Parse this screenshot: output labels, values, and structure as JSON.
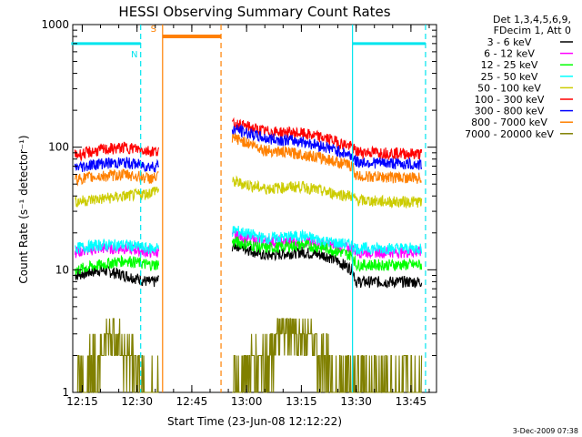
{
  "chart_data": {
    "type": "line",
    "title": "HESSI Observing Summary Count Rates",
    "xlabel": "Start Time (23-Jun-08 12:12:22)",
    "ylabel": "Count Rate (s⁻¹ detector⁻¹)",
    "y_scale": "log",
    "ylim": [
      1,
      1000
    ],
    "xlim_minutes_after_midnight": [
      732.4,
      832
    ],
    "x_ticks": [
      "12:15",
      "12:30",
      "12:45",
      "13:00",
      "13:15",
      "13:30",
      "13:45"
    ],
    "y_ticks": [
      "1",
      "10",
      "100",
      "1000"
    ],
    "legend_header": [
      "Det 1,3,4,5,6,9,",
      "FDecim 1, Att 0"
    ],
    "legend_position": "top-right",
    "footer": "3-Dec-2009 07:38",
    "markers": [
      {
        "label": "N",
        "color": "#00e5ee",
        "start": "12:12",
        "end": "12:31",
        "level": 700,
        "end_dash": "12:31"
      },
      {
        "label": "S",
        "color": "#ff8000",
        "start": "12:37",
        "end": "12:53",
        "level": 800,
        "start_solid": "12:37",
        "end_dash": "12:53"
      },
      {
        "label": "",
        "color": "#00e5ee",
        "start": "13:29",
        "end": "13:49",
        "level": 700,
        "start_solid": "13:29",
        "end_dash": "13:49"
      }
    ],
    "gaps": [
      [
        "12:36",
        "12:56"
      ]
    ],
    "series": [
      {
        "name": "3 - 6 keV",
        "color": "#000000",
        "x": [
          "12:13",
          "12:20",
          "12:27",
          "12:33",
          "12:35",
          "12:57",
          "13:05",
          "13:15",
          "13:22",
          "13:29",
          "13:30",
          "13:40",
          "13:48"
        ],
        "values": [
          9,
          10,
          9,
          8,
          8,
          16,
          13,
          14,
          13,
          10,
          8,
          8,
          8
        ]
      },
      {
        "name": "6 - 12 keV",
        "color": "#ff00ff",
        "x": [
          "12:13",
          "12:20",
          "12:27",
          "12:33",
          "12:35",
          "12:57",
          "13:05",
          "13:15",
          "13:22",
          "13:29",
          "13:30",
          "13:40",
          "13:48"
        ],
        "values": [
          14,
          15,
          15,
          14,
          14,
          19,
          17,
          17,
          16,
          15,
          14,
          14,
          14
        ]
      },
      {
        "name": "12 - 25 keV",
        "color": "#00ff00",
        "x": [
          "12:13",
          "12:20",
          "12:27",
          "12:33",
          "12:35",
          "12:57",
          "13:05",
          "13:15",
          "13:22",
          "13:29",
          "13:30",
          "13:40",
          "13:48"
        ],
        "values": [
          10,
          11,
          12,
          11,
          11,
          17,
          15,
          16,
          15,
          13,
          11,
          11,
          11
        ]
      },
      {
        "name": "25 - 50 keV",
        "color": "#00ffff",
        "x": [
          "12:13",
          "12:20",
          "12:27",
          "12:33",
          "12:35",
          "12:57",
          "13:05",
          "13:15",
          "13:22",
          "13:29",
          "13:30",
          "13:40",
          "13:48"
        ],
        "values": [
          15,
          16,
          16,
          15,
          15,
          21,
          18,
          19,
          17,
          16,
          15,
          15,
          15
        ]
      },
      {
        "name": "50 - 100 keV",
        "color": "#cccc00",
        "x": [
          "12:13",
          "12:20",
          "12:27",
          "12:33",
          "12:35",
          "12:57",
          "13:05",
          "13:15",
          "13:22",
          "13:29",
          "13:30",
          "13:40",
          "13:48"
        ],
        "values": [
          36,
          38,
          40,
          42,
          45,
          52,
          46,
          48,
          43,
          40,
          37,
          36,
          36
        ]
      },
      {
        "name": "100 - 300 keV",
        "color": "#ff0000",
        "x": [
          "12:13",
          "12:20",
          "12:27",
          "12:33",
          "12:35",
          "12:57",
          "13:05",
          "13:15",
          "13:22",
          "13:29",
          "13:30",
          "13:40",
          "13:48"
        ],
        "values": [
          86,
          95,
          100,
          94,
          93,
          155,
          135,
          130,
          118,
          100,
          92,
          90,
          88
        ]
      },
      {
        "name": "300 - 800 keV",
        "color": "#0000ff",
        "x": [
          "12:13",
          "12:20",
          "12:27",
          "12:33",
          "12:35",
          "12:57",
          "13:05",
          "13:15",
          "13:22",
          "13:29",
          "13:30",
          "13:40",
          "13:48"
        ],
        "values": [
          68,
          74,
          75,
          70,
          70,
          140,
          118,
          112,
          100,
          85,
          76,
          74,
          72
        ]
      },
      {
        "name": "800 - 7000 keV",
        "color": "#ff8000",
        "x": [
          "12:13",
          "12:20",
          "12:27",
          "12:33",
          "12:35",
          "12:57",
          "13:05",
          "13:15",
          "13:22",
          "13:29",
          "13:30",
          "13:40",
          "13:48"
        ],
        "values": [
          55,
          58,
          60,
          56,
          56,
          118,
          95,
          88,
          80,
          70,
          58,
          57,
          56
        ]
      },
      {
        "name": "7000 - 20000 keV",
        "color": "#808000",
        "x": [
          "12:13",
          "12:20",
          "12:23",
          "12:27",
          "12:33",
          "12:35",
          "12:57",
          "13:05",
          "13:10",
          "13:15",
          "13:20",
          "13:25",
          "13:29",
          "13:35",
          "13:48"
        ],
        "values": [
          1,
          2,
          3,
          2,
          1,
          1,
          1,
          2,
          3,
          3,
          2,
          1,
          1,
          1,
          1
        ]
      }
    ]
  }
}
